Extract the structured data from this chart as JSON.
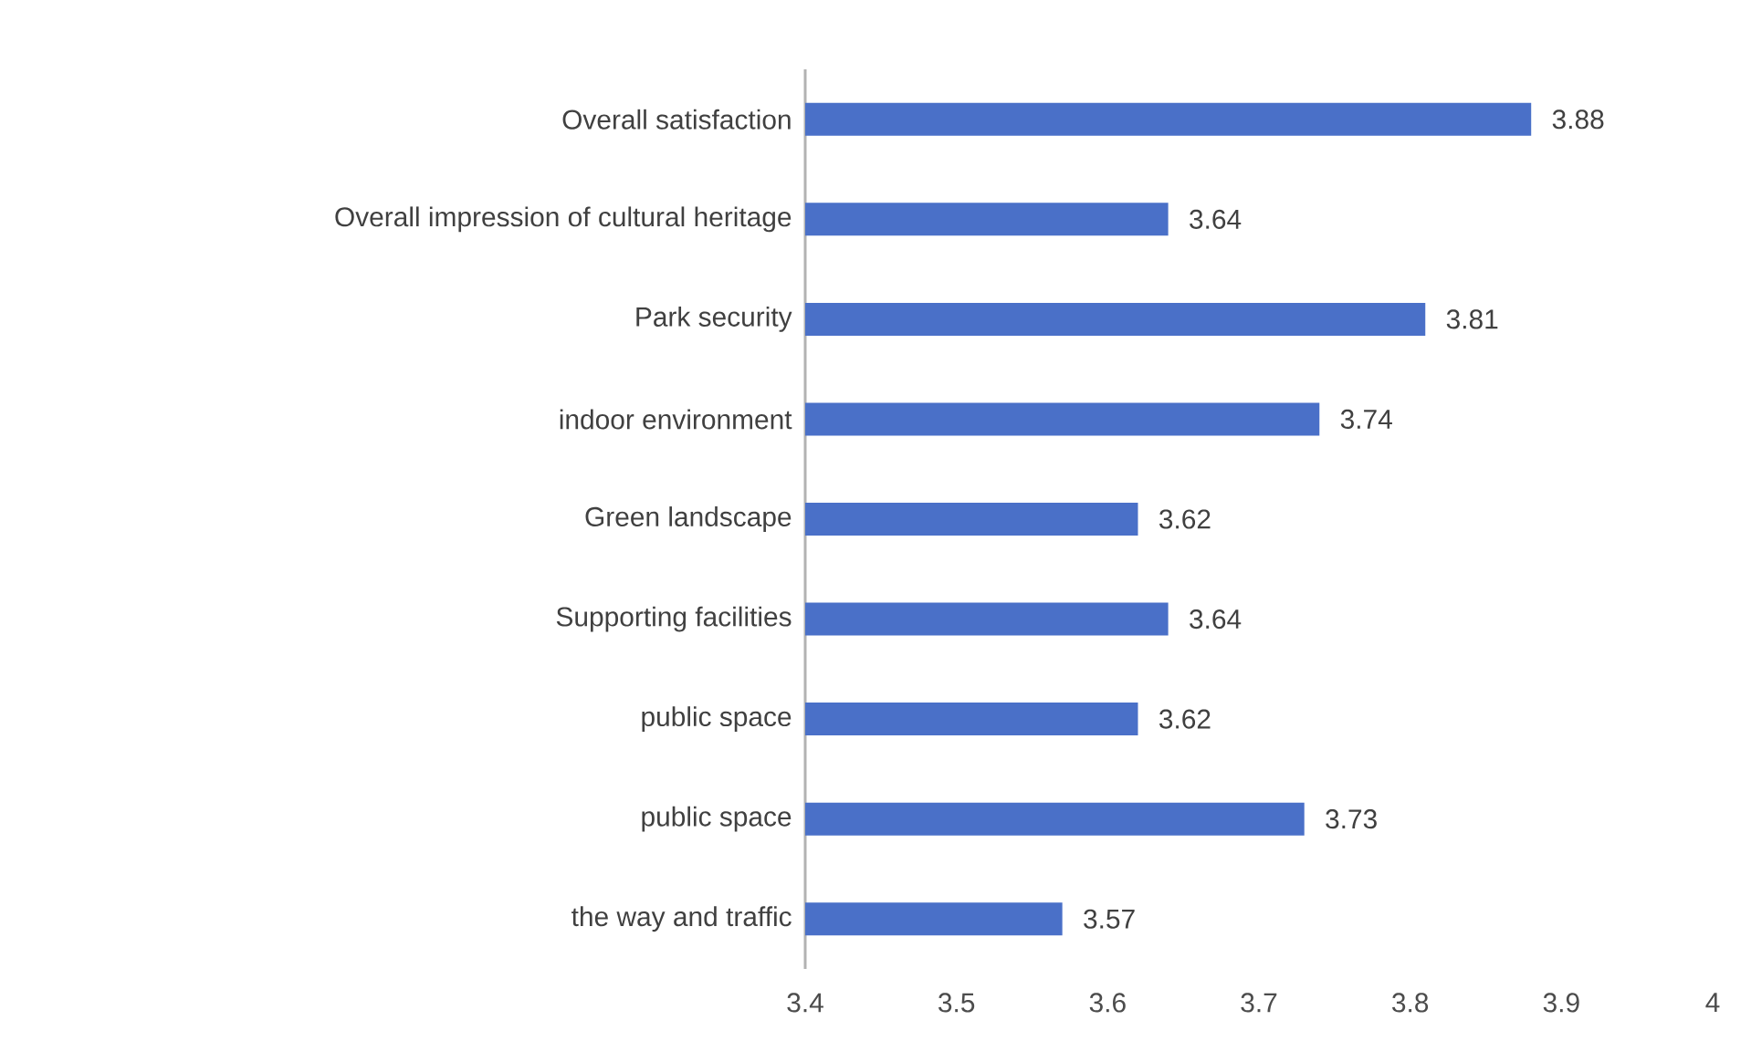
{
  "chart_data": {
    "type": "bar",
    "orientation": "horizontal",
    "categories": [
      "Overall satisfaction",
      "Overall impression of cultural heritage",
      "Park security",
      "indoor environment",
      "Green landscape",
      "Supporting facilities",
      "public space",
      "public space",
      "the way and traffic"
    ],
    "values": [
      3.88,
      3.64,
      3.81,
      3.74,
      3.62,
      3.64,
      3.62,
      3.73,
      3.57
    ],
    "color": "#4a70c8",
    "xlim": [
      3.4,
      4
    ],
    "xticks": [
      3.4,
      3.5,
      3.6,
      3.7,
      3.8,
      3.9,
      4
    ],
    "data_labels": true
  }
}
